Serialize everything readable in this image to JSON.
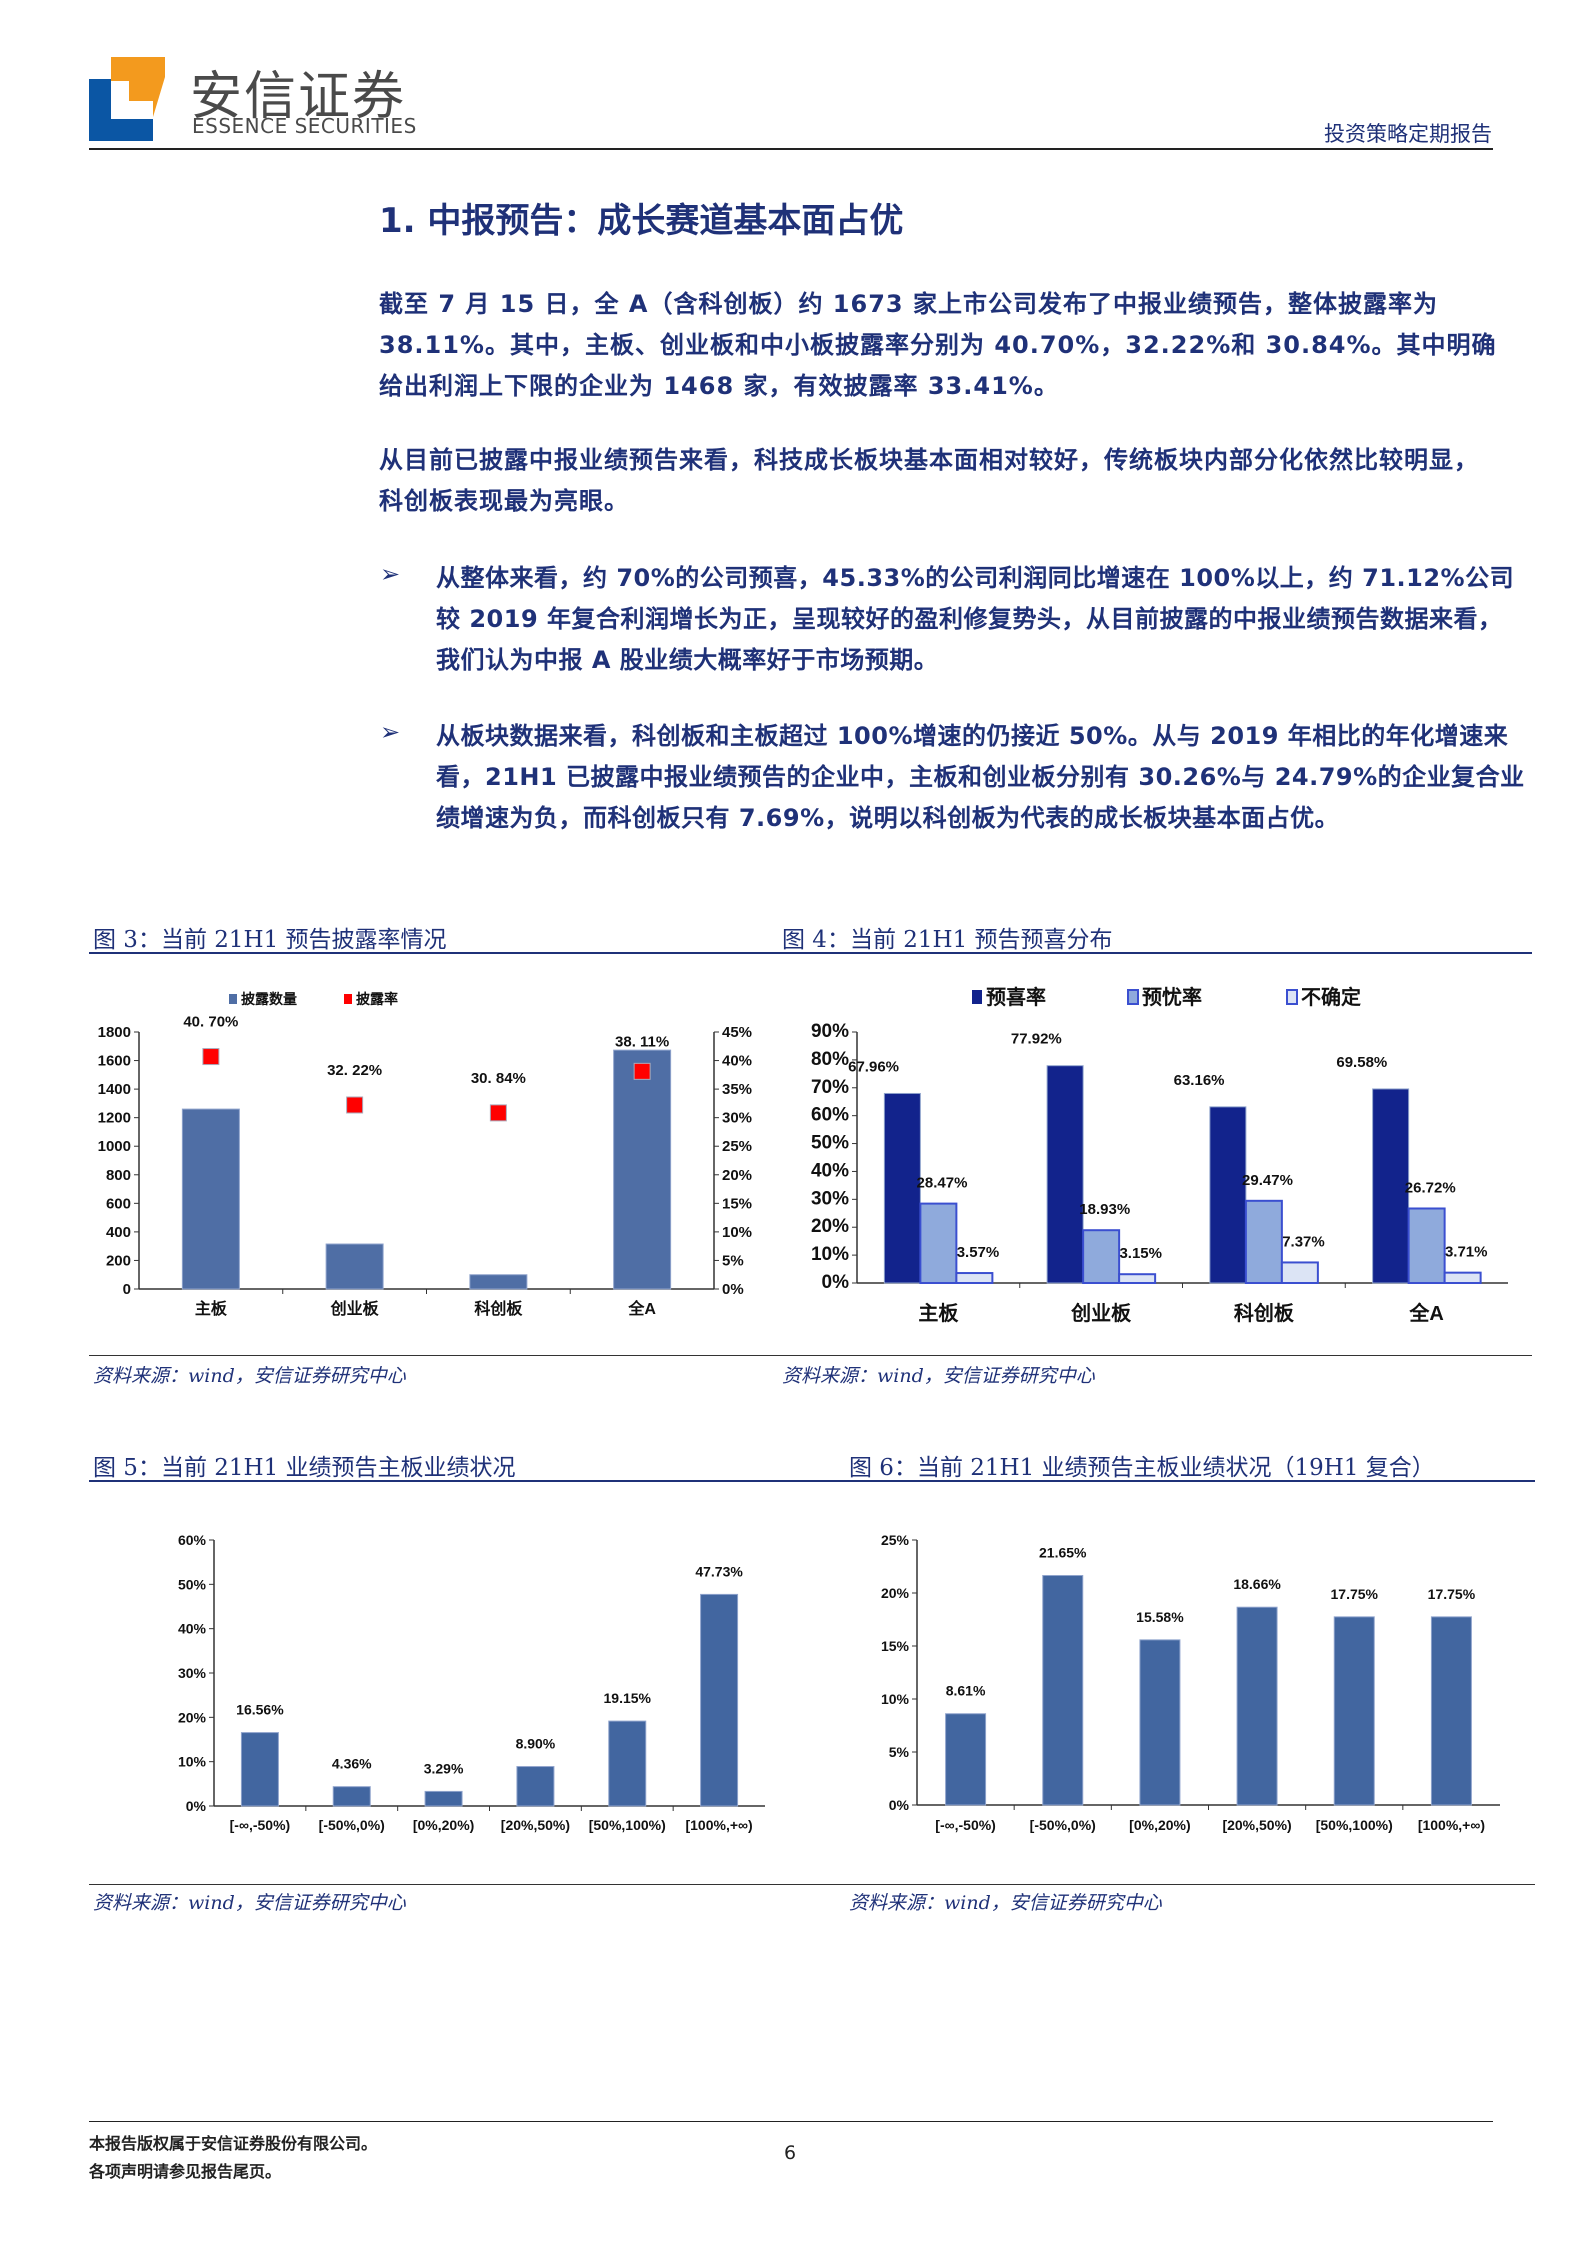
{
  "header": {
    "logo_cn": "安信证券",
    "logo_en": "ESSENCE SECURITIES",
    "report_type": "投资策略定期报告",
    "logo_colors": {
      "orange": "#F39A1E",
      "blue": "#0B56A4"
    }
  },
  "section_title": "1. 中报预告：成长赛道基本面占优",
  "paragraphs": [
    "截至 7 月 15 日，全 A（含科创板）约 1673 家上市公司发布了中报业绩预告，整体披露率为 38.11%。其中，主板、创业板和中小板披露率分别为 40.70%，32.22%和 30.84%。其中明确给出利润上下限的企业为 1468 家，有效披露率 33.41%。",
    "从目前已披露中报业绩预告来看，科技成长板块基本面相对较好，传统板块内部分化依然比较明显，科创板表现最为亮眼。"
  ],
  "bullets": [
    "从整体来看，约 70%的公司预喜，45.33%的公司利润同比增速在 100%以上，约 71.12%公司较 2019 年复合利润增长为正，呈现较好的盈利修复势头，从目前披露的中报业绩预告数据来看，我们认为中报 A 股业绩大概率好于市场预期。",
    "从板块数据来看，科创板和主板超过 100%增速的仍接近 50%。从与 2019 年相比的年化增速来看，21H1 已披露中报业绩预告的企业中，主板和创业板分别有 30.26%与 24.79%的企业复合业绩增速为负，而科创板只有 7.69%，说明以科创板为代表的成长板块基本面占优。"
  ],
  "bullet_icon": "arrowhead-bullet-icon",
  "figures": [
    {
      "title": "图 3：当前 21H1 预告披露率情况",
      "source": "资料来源：wind，安信证券研究中心"
    },
    {
      "title": "图 4：当前 21H1 预告预喜分布",
      "source": "资料来源：wind，安信证券研究中心"
    },
    {
      "title": "图 5：当前 21H1 业绩预告主板业绩状况",
      "source": "资料来源：wind，安信证券研究中心"
    },
    {
      "title": "图 6：当前 21H1 业绩预告主板业绩状况（19H1 复合）",
      "source": "资料来源：wind，安信证券研究中心"
    }
  ],
  "chart_data": [
    {
      "type": "bar",
      "categories": [
        "主板",
        "创业板",
        "科创板",
        "全A"
      ],
      "series": [
        {
          "name": "披露数量",
          "type": "bar",
          "axis": "left",
          "color": "#4F6EA5",
          "values": [
            1260,
            315,
            100,
            1673
          ]
        },
        {
          "name": "披露率",
          "type": "scatter",
          "axis": "right",
          "color": "#FF0000",
          "values": [
            40.7,
            32.22,
            30.84,
            38.11
          ],
          "labels": [
            "40. 70%",
            "32. 22%",
            "30. 84%",
            "38. 11%"
          ]
        }
      ],
      "y_left": {
        "range": [
          0,
          1800
        ],
        "ticks": [
          "0",
          "200",
          "400",
          "600",
          "800",
          "1000",
          "1200",
          "1400",
          "1600",
          "1800"
        ]
      },
      "y_right": {
        "range": [
          0,
          45
        ],
        "ticks": [
          "0%",
          "5%",
          "10%",
          "15%",
          "20%",
          "25%",
          "30%",
          "35%",
          "40%",
          "45%"
        ]
      },
      "legend": "top",
      "grid": false
    },
    {
      "type": "bar",
      "categories": [
        "主板",
        "创业板",
        "科创板",
        "全A"
      ],
      "series": [
        {
          "name": "预喜率",
          "color": "#12238C",
          "values": [
            67.96,
            77.92,
            63.16,
            69.58
          ],
          "labels": [
            "67.96%",
            "77.92%",
            "63.16%",
            "69.58%"
          ]
        },
        {
          "name": "预忧率",
          "color": "#8FAADC",
          "values": [
            28.47,
            18.93,
            29.47,
            26.72
          ],
          "labels": [
            "28.47%",
            "18.93%",
            "29.47%",
            "26.72%"
          ]
        },
        {
          "name": "不确定",
          "color": "#DCE4F5",
          "values": [
            3.57,
            3.15,
            7.37,
            3.71
          ],
          "labels": [
            "3.57%",
            "3.15%",
            "7.37%",
            "3.71%"
          ]
        }
      ],
      "y": {
        "range": [
          0,
          90
        ],
        "ticks": [
          "0%",
          "10%",
          "20%",
          "30%",
          "40%",
          "50%",
          "60%",
          "70%",
          "80%",
          "90%"
        ]
      },
      "legend": "top",
      "grid": false
    },
    {
      "type": "bar",
      "categories": [
        "[-∞,-50%)",
        "[-50%,0%)",
        "[0%,20%)",
        "[20%,50%)",
        "[50%,100%)",
        "[100%,+∞)"
      ],
      "series": [
        {
          "color": "#4266A0",
          "values": [
            16.56,
            4.36,
            3.29,
            8.9,
            19.15,
            47.73
          ],
          "labels": [
            "16.56%",
            "4.36%",
            "3.29%",
            "8.90%",
            "19.15%",
            "47.73%"
          ]
        }
      ],
      "y": {
        "range": [
          0,
          60
        ],
        "ticks": [
          "0%",
          "10%",
          "20%",
          "30%",
          "40%",
          "50%",
          "60%"
        ]
      },
      "grid": false
    },
    {
      "type": "bar",
      "categories": [
        "[-∞,-50%)",
        "[-50%,0%)",
        "[0%,20%)",
        "[20%,50%)",
        "[50%,100%)",
        "[100%,+∞)"
      ],
      "series": [
        {
          "color": "#4266A0",
          "values": [
            8.61,
            21.65,
            15.58,
            18.66,
            17.75,
            17.75
          ],
          "labels": [
            "8.61%",
            "21.65%",
            "15.58%",
            "18.66%",
            "17.75%",
            "17.75%"
          ]
        }
      ],
      "y": {
        "range": [
          0,
          25
        ],
        "ticks": [
          "0%",
          "5%",
          "10%",
          "15%",
          "20%",
          "25%"
        ]
      },
      "grid": false
    }
  ],
  "footer": {
    "copyright": "本报告版权属于安信证券股份有限公司。",
    "disclaimer": "各项声明请参见报告尾页。",
    "page_number": "6"
  }
}
